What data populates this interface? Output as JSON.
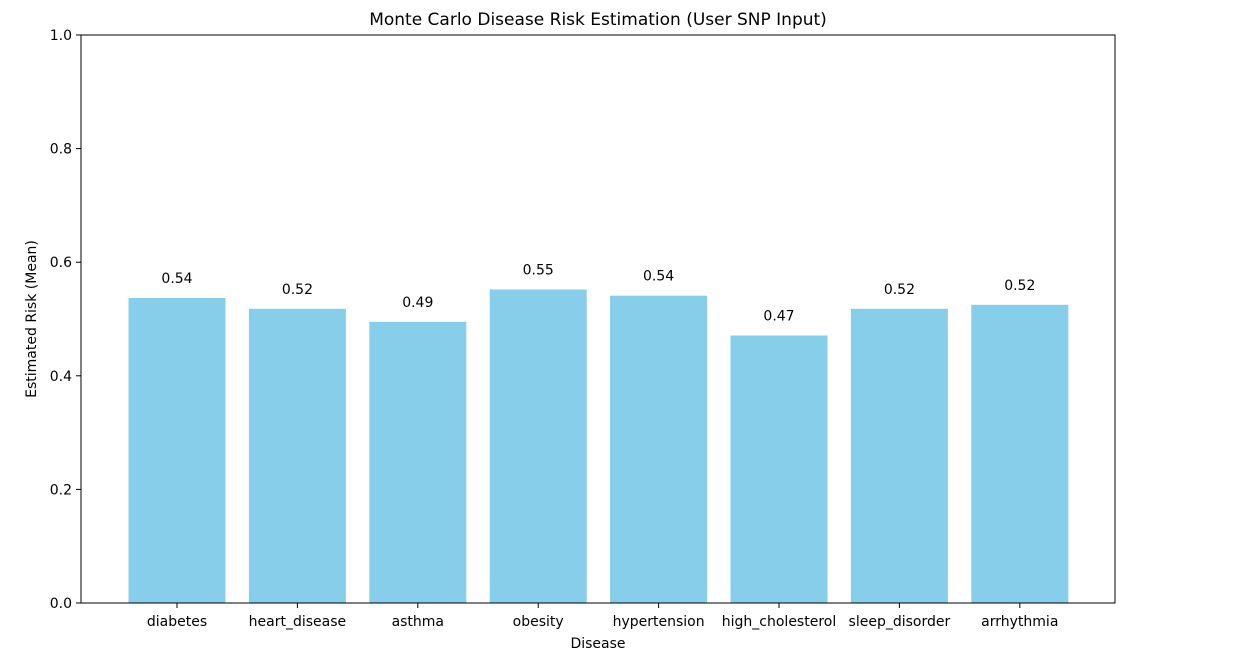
{
  "chart_data": {
    "type": "bar",
    "title": "Monte Carlo Disease Risk Estimation (User SNP Input)",
    "xlabel": "Disease",
    "ylabel": "Estimated Risk (Mean)",
    "ylim": [
      0,
      1.0
    ],
    "yticks": [
      "0.0",
      "0.2",
      "0.4",
      "0.6",
      "0.8",
      "1.0"
    ],
    "categories": [
      "diabetes",
      "heart_disease",
      "asthma",
      "obesity",
      "hypertension",
      "high_cholesterol",
      "sleep_disorder",
      "arrhythmia"
    ],
    "values": [
      0.537,
      0.518,
      0.495,
      0.552,
      0.541,
      0.471,
      0.518,
      0.525
    ],
    "value_labels": [
      "0.54",
      "0.52",
      "0.49",
      "0.55",
      "0.54",
      "0.47",
      "0.52",
      "0.52"
    ],
    "bar_color": "#87ceeb",
    "grid": false,
    "legend": "none"
  }
}
